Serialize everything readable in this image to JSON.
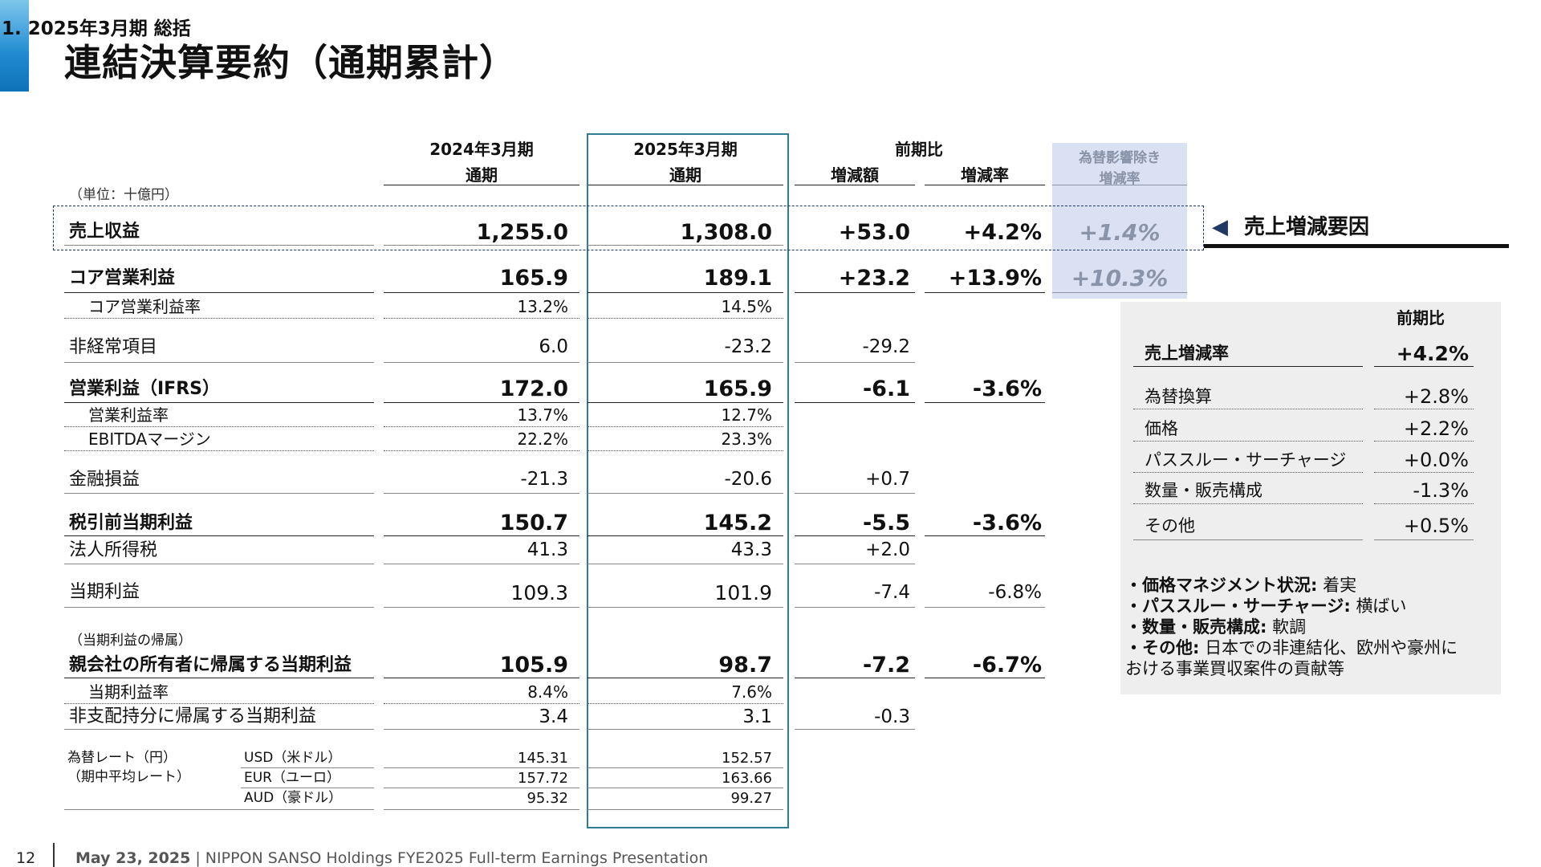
{
  "header": {
    "section": "1. 2025年3月期 総括",
    "title": "連結決算要約（通期累計）"
  },
  "columns": {
    "prev": [
      "2024年3月期",
      "通期"
    ],
    "curr": [
      "2025年3月期",
      "通期"
    ],
    "yoy": "前期比",
    "diff": "増減額",
    "rate": "増減率",
    "fx": [
      "為替影響除き",
      "増減率"
    ]
  },
  "unit": "（単位：十億円）",
  "rows": {
    "revenue": {
      "label": "売上収益",
      "prev": "1,255.0",
      "curr": "1,308.0",
      "diff": "+53.0",
      "rate": "+4.2%",
      "fx": "+1.4%"
    },
    "core_op": {
      "label": "コア営業利益",
      "prev": "165.9",
      "curr": "189.1",
      "diff": "+23.2",
      "rate": "+13.9%",
      "fx": "+10.3%"
    },
    "core_margin": {
      "label": "コア営業利益率",
      "prev": "13.2%",
      "curr": "14.5%"
    },
    "nonrecurring": {
      "label": "非経常項目",
      "prev": "6.0",
      "curr": "-23.2",
      "diff": "-29.2"
    },
    "op_ifrs": {
      "label": "営業利益（IFRS）",
      "prev": "172.0",
      "curr": "165.9",
      "diff": "-6.1",
      "rate": "-3.6%"
    },
    "op_margin": {
      "label": "営業利益率",
      "prev": "13.7%",
      "curr": "12.7%"
    },
    "ebitda_margin": {
      "label": "EBITDAマージン",
      "prev": "22.2%",
      "curr": "23.3%"
    },
    "finance": {
      "label": "金融損益",
      "prev": "-21.3",
      "curr": "-20.6",
      "diff": "+0.7"
    },
    "pretax": {
      "label": "税引前当期利益",
      "prev": "150.7",
      "curr": "145.2",
      "diff": "-5.5",
      "rate": "-3.6%"
    },
    "tax": {
      "label": "法人所得税",
      "prev": "41.3",
      "curr": "43.3",
      "diff": "+2.0"
    },
    "net": {
      "label": "当期利益",
      "prev": "109.3",
      "curr": "101.9",
      "diff": "-7.4",
      "rate": "-6.8%"
    },
    "attrib_note": {
      "label": "（当期利益の帰属）"
    },
    "owners": {
      "label": "親会社の所有者に帰属する当期利益",
      "prev": "105.9",
      "curr": "98.7",
      "diff": "-7.2",
      "rate": "-6.7%"
    },
    "net_margin": {
      "label": "当期利益率",
      "prev": "8.4%",
      "curr": "7.6%"
    },
    "nci": {
      "label": "非支配持分に帰属する当期利益",
      "prev": "3.4",
      "curr": "3.1",
      "diff": "-0.3"
    }
  },
  "fx_rates": {
    "label1": "為替レート（円）",
    "label2": "（期中平均レート）",
    "items": [
      {
        "ccy": "USD（米ドル）",
        "prev": "145.31",
        "curr": "152.57"
      },
      {
        "ccy": "EUR（ユーロ）",
        "prev": "157.72",
        "curr": "163.66"
      },
      {
        "ccy": "AUD（豪ドル）",
        "prev": "95.32",
        "curr": "99.27"
      }
    ]
  },
  "callout": {
    "arrow": "◀",
    "text": "売上増減要因"
  },
  "panel": {
    "header": "前期比",
    "total": {
      "label": "売上増減率",
      "value": "+4.2%"
    },
    "items": [
      {
        "label": "為替換算",
        "value": "+2.8%"
      },
      {
        "label": "価格",
        "value": "+2.2%"
      },
      {
        "label": "パススルー・サーチャージ",
        "value": "+0.0%"
      },
      {
        "label": "数量・販売構成",
        "value": "-1.3%"
      },
      {
        "label": "その他",
        "value": "+0.5%"
      }
    ],
    "notes": [
      {
        "key": "・価格マネジメント状況:",
        "text": " 着実"
      },
      {
        "key": "・パススルー・サーチャージ:",
        "text": " 横ばい"
      },
      {
        "key": "・数量・販売構成:",
        "text": " 軟調"
      },
      {
        "key": "・その他:",
        "text": " 日本での非連結化、欧州や豪州に"
      }
    ],
    "note_cont": "おける事業買収案件の貢献等"
  },
  "footer": {
    "page": "12",
    "date": "May 23, 2025",
    "text": " | NIPPON SANSO Holdings FYE2025 Full-term Earnings Presentation"
  }
}
